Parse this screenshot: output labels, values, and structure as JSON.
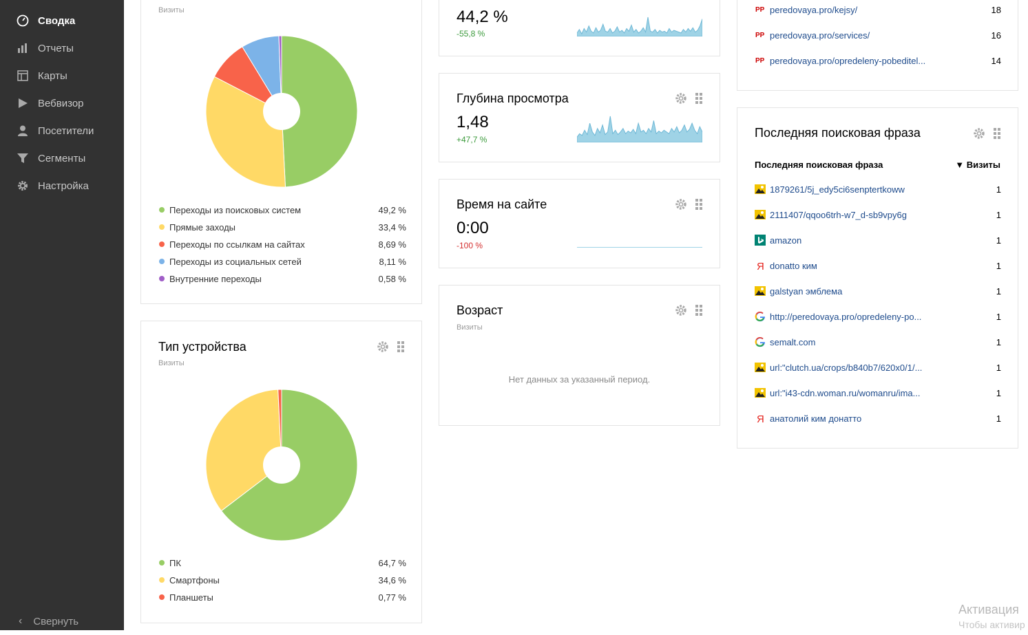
{
  "sidebar": {
    "items": [
      {
        "label": "Сводка",
        "icon": "dashboard-icon"
      },
      {
        "label": "Отчеты",
        "icon": "bar-chart-icon"
      },
      {
        "label": "Карты",
        "icon": "map-icon"
      },
      {
        "label": "Вебвизор",
        "icon": "play-icon"
      },
      {
        "label": "Посетители",
        "icon": "user-icon"
      },
      {
        "label": "Сегменты",
        "icon": "filter-icon"
      },
      {
        "label": "Настройка",
        "icon": "gear-icon"
      }
    ],
    "collapse_label": "Свернуть"
  },
  "sources": {
    "subtitle": "Визиты",
    "legend": [
      {
        "label": "Переходы из поисковых систем",
        "value": "49,2 %",
        "share": 49.2,
        "color": "#98cd65"
      },
      {
        "label": "Прямые заходы",
        "value": "33,4 %",
        "share": 33.4,
        "color": "#ffd966"
      },
      {
        "label": "Переходы по ссылкам на сайтах",
        "value": "8,69 %",
        "share": 8.69,
        "color": "#f8634a"
      },
      {
        "label": "Переходы из социальных сетей",
        "value": "8,11 %",
        "share": 8.11,
        "color": "#7cb3e8"
      },
      {
        "label": "Внутренние переходы",
        "value": "0,58 %",
        "share": 0.58,
        "color": "#a05ec7"
      }
    ]
  },
  "devices": {
    "title": "Тип устройства",
    "subtitle": "Визиты",
    "legend": [
      {
        "label": "ПК",
        "value": "64,7 %",
        "share": 64.7,
        "color": "#98cd65"
      },
      {
        "label": "Смартфоны",
        "value": "34,6 %",
        "share": 34.6,
        "color": "#ffd966"
      },
      {
        "label": "Планшеты",
        "value": "0,77 %",
        "share": 0.77,
        "color": "#f8634a"
      }
    ]
  },
  "bounce": {
    "value": "44,2 %",
    "delta": "-55,8 %",
    "spark": [
      4,
      8,
      3,
      9,
      5,
      12,
      6,
      4,
      10,
      5,
      7,
      14,
      6,
      5,
      9,
      4,
      6,
      11,
      5,
      7,
      4,
      9,
      6,
      13,
      5,
      8,
      4,
      6,
      10,
      5,
      22,
      6,
      5,
      8,
      4,
      7,
      5,
      6,
      4,
      9,
      5,
      7,
      6,
      5,
      4,
      8,
      5,
      9,
      6,
      10,
      5,
      7,
      12,
      20
    ]
  },
  "depth": {
    "title": "Глубина просмотра",
    "value": "1,48",
    "delta": "+47,7 %",
    "spark": [
      6,
      10,
      8,
      14,
      9,
      22,
      12,
      8,
      16,
      11,
      20,
      9,
      12,
      30,
      10,
      14,
      9,
      12,
      16,
      10,
      13,
      11,
      15,
      10,
      22,
      12,
      14,
      10,
      16,
      12,
      25,
      10,
      13,
      11,
      14,
      12,
      10,
      16,
      12,
      18,
      11,
      14,
      20,
      12,
      15,
      22,
      14,
      10,
      18,
      12
    ]
  },
  "time": {
    "title": "Время на сайте",
    "value": "0:00",
    "delta": "-100 %"
  },
  "age": {
    "title": "Возраст",
    "subtitle": "Визиты",
    "empty": "Нет данных за указанный период."
  },
  "pages": {
    "rows": [
      {
        "text": "peredovaya.pro/kejsy/",
        "count": "18",
        "icon": "pp-favicon-icon"
      },
      {
        "text": "peredovaya.pro/services/",
        "count": "16",
        "icon": "pp-favicon-icon"
      },
      {
        "text": "peredovaya.pro/opredeleny-pobeditel...",
        "count": "14",
        "icon": "pp-favicon-icon"
      }
    ]
  },
  "search": {
    "title": "Последняя поисковая фраза",
    "col_phrase": "Последняя поисковая фраза",
    "col_visits": "▼ Визиты",
    "rows": [
      {
        "text": "1879261/5j_edy5ci6senptertkoww",
        "count": "1",
        "icon": "image-search-icon"
      },
      {
        "text": "2111407/qqoo6trh-w7_d-sb9vpy6g",
        "count": "1",
        "icon": "image-search-icon"
      },
      {
        "text": "amazon",
        "count": "1",
        "icon": "bing-icon"
      },
      {
        "text": "donatto ким",
        "count": "1",
        "icon": "yandex-icon"
      },
      {
        "text": "galstyan эмблема",
        "count": "1",
        "icon": "image-search-icon"
      },
      {
        "text": "http://peredovaya.pro/opredeleny-po...",
        "count": "1",
        "icon": "google-icon"
      },
      {
        "text": "semalt.com",
        "count": "1",
        "icon": "google-icon"
      },
      {
        "text": "url:\"clutch.ua/crops/b840b7/620x0/1/...",
        "count": "1",
        "icon": "image-search-icon"
      },
      {
        "text": "url:\"i43-cdn.woman.ru/womanru/ima...",
        "count": "1",
        "icon": "image-search-icon"
      },
      {
        "text": "анатолий ким донатто",
        "count": "1",
        "icon": "yandex-icon"
      }
    ]
  },
  "watermark": {
    "line1": "Активация",
    "line2": "Чтобы активир"
  }
}
